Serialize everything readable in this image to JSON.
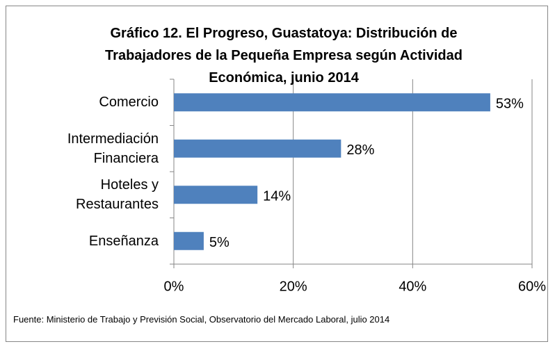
{
  "chart_data": {
    "type": "bar",
    "orientation": "horizontal",
    "title": "Gráfico 12. El Progreso, Guastatoya: Distribución de Trabajadores de la Pequeña Empresa según Actividad Económica, junio 2014",
    "categories": [
      "Comercio",
      "Intermediación Financiera",
      "Hoteles y Restaurantes",
      "Enseñanza"
    ],
    "values": [
      53,
      28,
      14,
      5
    ],
    "value_labels": [
      "53%",
      "28%",
      "14%",
      "5%"
    ],
    "color": "#4f81bd",
    "xlim": [
      0,
      60
    ],
    "xticks": [
      {
        "value": 0,
        "label": "0%"
      },
      {
        "value": 20,
        "label": "20%"
      },
      {
        "value": 40,
        "label": "40%"
      },
      {
        "value": 60,
        "label": "60%"
      }
    ],
    "grid": true,
    "source": "Fuente: Ministerio de Trabajo y Previsión Social, Observatorio del Mercado Laboral, julio 2014"
  }
}
